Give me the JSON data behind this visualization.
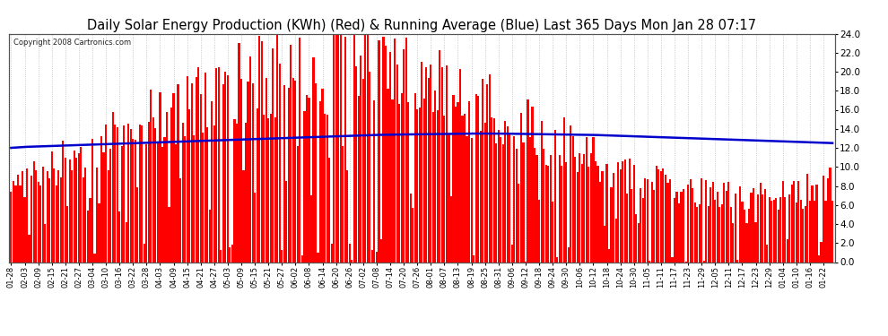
{
  "title": "Daily Solar Energy Production (KWh) (Red) & Running Average (Blue) Last 365 Days Mon Jan 28 07:17",
  "copyright_text": "Copyright 2008 Cartronics.com",
  "ylim": [
    0,
    24.0
  ],
  "yticks": [
    0.0,
    2.0,
    4.0,
    6.0,
    8.0,
    10.0,
    12.0,
    14.0,
    16.0,
    18.0,
    20.0,
    22.0,
    24.0
  ],
  "bar_color": "#ff0000",
  "avg_color": "#0000cc",
  "bg_color": "#ffffff",
  "grid_color": "#bbbbbb",
  "title_fontsize": 10.5,
  "x_tick_labels": [
    "01-28",
    "02-03",
    "02-09",
    "02-15",
    "02-21",
    "02-27",
    "03-04",
    "03-10",
    "03-16",
    "03-22",
    "03-28",
    "04-03",
    "04-09",
    "04-15",
    "04-21",
    "04-27",
    "05-03",
    "05-09",
    "05-15",
    "05-21",
    "05-27",
    "06-02",
    "06-08",
    "06-14",
    "06-20",
    "06-26",
    "07-02",
    "07-08",
    "07-14",
    "07-20",
    "07-26",
    "08-01",
    "08-07",
    "08-13",
    "08-19",
    "08-25",
    "08-31",
    "09-06",
    "09-12",
    "09-18",
    "09-24",
    "09-30",
    "10-06",
    "10-12",
    "10-18",
    "10-24",
    "10-30",
    "11-05",
    "11-11",
    "11-17",
    "11-23",
    "11-29",
    "12-05",
    "12-11",
    "12-17",
    "12-23",
    "12-29",
    "01-04",
    "01-10",
    "01-16",
    "01-22"
  ],
  "running_avg_points": [
    12.0,
    12.1,
    12.15,
    12.2,
    12.25,
    12.3,
    12.35,
    12.4,
    12.45,
    12.5,
    12.55,
    12.6,
    12.65,
    12.7,
    12.75,
    12.8,
    12.85,
    12.9,
    12.95,
    13.0,
    13.05,
    13.1,
    13.15,
    13.2,
    13.25,
    13.3,
    13.35,
    13.38,
    13.4,
    13.42,
    13.44,
    13.46,
    13.48,
    13.5,
    13.5,
    13.5,
    13.48,
    13.46,
    13.44,
    13.42,
    13.4,
    13.38,
    13.35,
    13.3,
    13.25,
    13.2,
    13.15,
    13.1,
    13.05,
    13.0,
    12.95,
    12.9,
    12.85,
    12.8,
    12.75,
    12.7,
    12.65,
    12.6,
    12.55,
    12.5
  ],
  "seed": 123
}
